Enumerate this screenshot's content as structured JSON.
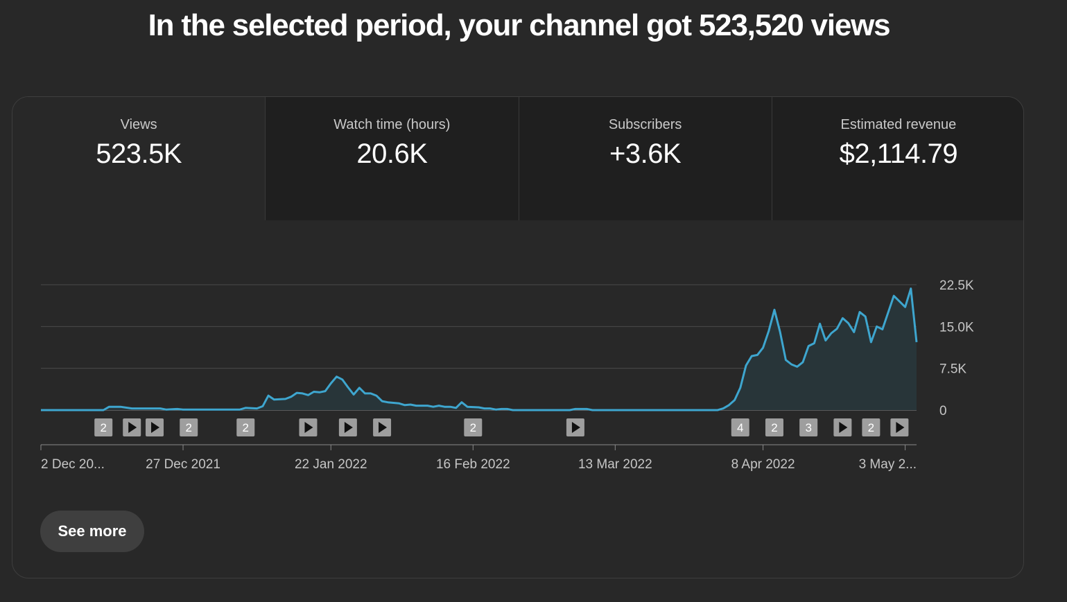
{
  "headline": "In the selected period, your channel got 523,520 views",
  "tabs": [
    {
      "label": "Views",
      "value": "523.5K",
      "active": true
    },
    {
      "label": "Watch time (hours)",
      "value": "20.6K",
      "active": false
    },
    {
      "label": "Subscribers",
      "value": "+3.6K",
      "active": false
    },
    {
      "label": "Estimated revenue",
      "value": "$2,114.79",
      "active": false
    }
  ],
  "see_more_label": "See more",
  "colors": {
    "background": "#282828",
    "tab_inactive": "#1f1f1f",
    "line": "#3ea6cf",
    "area": "#283539",
    "gridline": "#4a4a4a",
    "marker": "#9e9e9e"
  },
  "chart_data": {
    "type": "area",
    "x_start": "2021-12-02",
    "x_end": "2022-05-05",
    "ylim": [
      0,
      22500
    ],
    "yticks": [
      "22.5K",
      "15.0K",
      "7.5K",
      "0"
    ],
    "ytick_values": [
      22500,
      15000,
      7500,
      0
    ],
    "xticks": [
      {
        "label": "2 Dec 20...",
        "date": "2021-12-02"
      },
      {
        "label": "27 Dec 2021",
        "date": "2021-12-27"
      },
      {
        "label": "22 Jan 2022",
        "date": "2022-01-22"
      },
      {
        "label": "16 Feb 2022",
        "date": "2022-02-16"
      },
      {
        "label": "13 Mar 2022",
        "date": "2022-03-13"
      },
      {
        "label": "8 Apr 2022",
        "date": "2022-04-08"
      },
      {
        "label": "3 May 2...",
        "date": "2022-05-03"
      }
    ],
    "points": [
      [
        "2021-12-02",
        0
      ],
      [
        "2021-12-13",
        0
      ],
      [
        "2021-12-14",
        600
      ],
      [
        "2021-12-16",
        600
      ],
      [
        "2021-12-18",
        300
      ],
      [
        "2021-12-23",
        300
      ],
      [
        "2021-12-24",
        100
      ],
      [
        "2021-12-26",
        200
      ],
      [
        "2021-12-27",
        100
      ],
      [
        "2022-01-06",
        100
      ],
      [
        "2022-01-07",
        400
      ],
      [
        "2022-01-09",
        300
      ],
      [
        "2022-01-10",
        700
      ],
      [
        "2022-01-11",
        2600
      ],
      [
        "2022-01-12",
        1900
      ],
      [
        "2022-01-14",
        2000
      ],
      [
        "2022-01-15",
        2400
      ],
      [
        "2022-01-16",
        3100
      ],
      [
        "2022-01-17",
        3000
      ],
      [
        "2022-01-18",
        2700
      ],
      [
        "2022-01-19",
        3300
      ],
      [
        "2022-01-20",
        3200
      ],
      [
        "2022-01-21",
        3400
      ],
      [
        "2022-01-22",
        4800
      ],
      [
        "2022-01-23",
        6000
      ],
      [
        "2022-01-24",
        5500
      ],
      [
        "2022-01-25",
        4100
      ],
      [
        "2022-01-26",
        2800
      ],
      [
        "2022-01-27",
        4000
      ],
      [
        "2022-01-28",
        3000
      ],
      [
        "2022-01-29",
        3000
      ],
      [
        "2022-01-30",
        2600
      ],
      [
        "2022-01-31",
        1600
      ],
      [
        "2022-02-01",
        1400
      ],
      [
        "2022-02-03",
        1200
      ],
      [
        "2022-02-04",
        900
      ],
      [
        "2022-02-05",
        1000
      ],
      [
        "2022-02-06",
        800
      ],
      [
        "2022-02-08",
        800
      ],
      [
        "2022-02-09",
        600
      ],
      [
        "2022-02-10",
        800
      ],
      [
        "2022-02-11",
        600
      ],
      [
        "2022-02-12",
        600
      ],
      [
        "2022-02-13",
        400
      ],
      [
        "2022-02-14",
        1400
      ],
      [
        "2022-02-15",
        600
      ],
      [
        "2022-02-17",
        500
      ],
      [
        "2022-02-18",
        300
      ],
      [
        "2022-02-19",
        300
      ],
      [
        "2022-02-20",
        100
      ],
      [
        "2022-02-21",
        200
      ],
      [
        "2022-02-22",
        200
      ],
      [
        "2022-02-23",
        0
      ],
      [
        "2022-03-05",
        0
      ],
      [
        "2022-03-06",
        200
      ],
      [
        "2022-03-08",
        200
      ],
      [
        "2022-03-09",
        0
      ],
      [
        "2022-03-31",
        0
      ],
      [
        "2022-04-01",
        300
      ],
      [
        "2022-04-02",
        900
      ],
      [
        "2022-04-03",
        1800
      ],
      [
        "2022-04-04",
        4000
      ],
      [
        "2022-04-05",
        8000
      ],
      [
        "2022-04-06",
        9700
      ],
      [
        "2022-04-07",
        9900
      ],
      [
        "2022-04-08",
        11200
      ],
      [
        "2022-04-09",
        14200
      ],
      [
        "2022-04-10",
        18000
      ],
      [
        "2022-04-11",
        14000
      ],
      [
        "2022-04-12",
        9000
      ],
      [
        "2022-04-13",
        8200
      ],
      [
        "2022-04-14",
        7800
      ],
      [
        "2022-04-15",
        8600
      ],
      [
        "2022-04-16",
        11500
      ],
      [
        "2022-04-17",
        12000
      ],
      [
        "2022-04-18",
        15500
      ],
      [
        "2022-04-19",
        12500
      ],
      [
        "2022-04-20",
        13800
      ],
      [
        "2022-04-21",
        14600
      ],
      [
        "2022-04-22",
        16500
      ],
      [
        "2022-04-23",
        15600
      ],
      [
        "2022-04-24",
        14000
      ],
      [
        "2022-04-25",
        17600
      ],
      [
        "2022-04-26",
        16800
      ],
      [
        "2022-04-27",
        12200
      ],
      [
        "2022-04-28",
        15000
      ],
      [
        "2022-04-29",
        14500
      ],
      [
        "2022-04-30",
        17500
      ],
      [
        "2022-05-01",
        20500
      ],
      [
        "2022-05-02",
        19500
      ],
      [
        "2022-05-03",
        18500
      ],
      [
        "2022-05-04",
        21800
      ],
      [
        "2022-05-05",
        12200
      ]
    ],
    "markers": [
      {
        "date": "2021-12-13",
        "kind": "count",
        "label": "2"
      },
      {
        "date": "2021-12-18",
        "kind": "video",
        "label": ""
      },
      {
        "date": "2021-12-22",
        "kind": "video",
        "label": ""
      },
      {
        "date": "2021-12-28",
        "kind": "count",
        "label": "2"
      },
      {
        "date": "2022-01-07",
        "kind": "count",
        "label": "2"
      },
      {
        "date": "2022-01-18",
        "kind": "video",
        "label": ""
      },
      {
        "date": "2022-01-25",
        "kind": "video",
        "label": ""
      },
      {
        "date": "2022-01-31",
        "kind": "video",
        "label": ""
      },
      {
        "date": "2022-02-16",
        "kind": "count",
        "label": "2"
      },
      {
        "date": "2022-03-06",
        "kind": "video",
        "label": ""
      },
      {
        "date": "2022-04-04",
        "kind": "count",
        "label": "4"
      },
      {
        "date": "2022-04-10",
        "kind": "count",
        "label": "2"
      },
      {
        "date": "2022-04-16",
        "kind": "count",
        "label": "3"
      },
      {
        "date": "2022-04-22",
        "kind": "video",
        "label": ""
      },
      {
        "date": "2022-04-27",
        "kind": "count",
        "label": "2"
      },
      {
        "date": "2022-05-02",
        "kind": "video",
        "label": ""
      }
    ]
  }
}
